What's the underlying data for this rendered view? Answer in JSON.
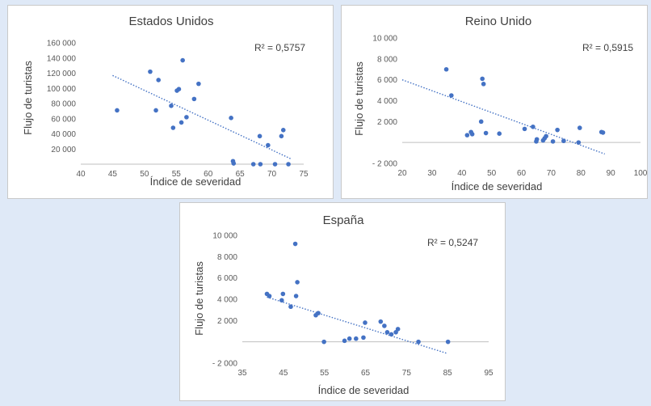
{
  "chart_data": [
    {
      "type": "scatter",
      "title": "Estados Unidos",
      "xlabel": "Índice de severidad",
      "ylabel": "Flujo de turistas",
      "xlim": [
        40,
        75
      ],
      "ylim": [
        0,
        160000
      ],
      "xticks": [
        40,
        45,
        50,
        55,
        60,
        65,
        70,
        75
      ],
      "xtick_labels": [
        "40",
        "45",
        "50",
        "55",
        "60",
        "65",
        "70",
        "75"
      ],
      "yticks": [
        20000,
        40000,
        60000,
        80000,
        100000,
        120000,
        140000,
        160000
      ],
      "ytick_labels": [
        "20 000",
        "40 000",
        "60 000",
        "80 000",
        "100 000",
        "120 000",
        "140 000",
        "160 000"
      ],
      "grid": false,
      "r2_label": "R² = 0,5757",
      "trendline": {
        "x": [
          45,
          73
        ],
        "y": [
          117000,
          7000
        ]
      },
      "points": [
        [
          45.7,
          71000
        ],
        [
          50.9,
          122000
        ],
        [
          51.8,
          71000
        ],
        [
          52.2,
          111000
        ],
        [
          54.2,
          77000
        ],
        [
          54.5,
          48000
        ],
        [
          55.1,
          97000
        ],
        [
          55.4,
          99000
        ],
        [
          55.8,
          55000
        ],
        [
          56,
          137000
        ],
        [
          56.6,
          62000
        ],
        [
          57.8,
          86000
        ],
        [
          58.5,
          106000
        ],
        [
          63.6,
          61000
        ],
        [
          63.9,
          4000
        ],
        [
          64,
          1000
        ],
        [
          67.1,
          0
        ],
        [
          68.1,
          37000
        ],
        [
          68.2,
          0
        ],
        [
          69.4,
          25000
        ],
        [
          70.5,
          0
        ],
        [
          71.5,
          37000
        ],
        [
          71.8,
          45000
        ],
        [
          72.6,
          0
        ]
      ]
    },
    {
      "type": "scatter",
      "title": "Reino Unido",
      "xlabel": "Índice de severidad",
      "ylabel": "Flujo de turistas",
      "xlim": [
        20,
        100
      ],
      "ylim": [
        -2000,
        10000
      ],
      "xticks": [
        20,
        30,
        40,
        50,
        60,
        70,
        80,
        90,
        100
      ],
      "xtick_labels": [
        "20",
        "30",
        "40",
        "50",
        "60",
        "70",
        "80",
        "90",
        "100"
      ],
      "yticks": [
        -2000,
        2000,
        4000,
        6000,
        8000,
        10000
      ],
      "ytick_labels": [
        "- 2 000",
        "2 000",
        "4 000",
        "6 000",
        "8 000",
        "10 000"
      ],
      "grid": false,
      "r2_label": "R² = 0,5915",
      "trendline": {
        "x": [
          20,
          88
        ],
        "y": [
          6000,
          -1100
        ]
      },
      "points": [
        [
          34.8,
          7000
        ],
        [
          36.5,
          4500
        ],
        [
          41.8,
          700
        ],
        [
          43.1,
          1000
        ],
        [
          43.5,
          800
        ],
        [
          46.5,
          2000
        ],
        [
          46.9,
          6100
        ],
        [
          47.3,
          5600
        ],
        [
          48.1,
          900
        ],
        [
          52.6,
          850
        ],
        [
          61.1,
          1300
        ],
        [
          63.9,
          1500
        ],
        [
          65,
          100
        ],
        [
          65.2,
          300
        ],
        [
          67.3,
          200
        ],
        [
          67.8,
          400
        ],
        [
          68.3,
          600
        ],
        [
          70.6,
          100
        ],
        [
          72.1,
          1200
        ],
        [
          74.2,
          150
        ],
        [
          79.2,
          0
        ],
        [
          79.6,
          1400
        ],
        [
          86.9,
          1000
        ],
        [
          87.4,
          950
        ]
      ]
    },
    {
      "type": "scatter",
      "title": "España",
      "xlabel": "Índice de severidad",
      "ylabel": "Flujo de turistas",
      "xlim": [
        35,
        95
      ],
      "ylim": [
        -2000,
        10000
      ],
      "xticks": [
        35,
        45,
        55,
        65,
        75,
        85,
        95
      ],
      "xtick_labels": [
        "35",
        "45",
        "55",
        "65",
        "75",
        "85",
        "95"
      ],
      "yticks": [
        -2000,
        2000,
        4000,
        6000,
        8000,
        10000
      ],
      "ytick_labels": [
        "- 2 000",
        "2 000",
        "4 000",
        "6 000",
        "8 000",
        "10 000"
      ],
      "grid": false,
      "r2_label": "R² = 0,5247",
      "trendline": {
        "x": [
          41,
          85
        ],
        "y": [
          4200,
          -1100
        ]
      },
      "points": [
        [
          41,
          4500
        ],
        [
          41.6,
          4300
        ],
        [
          44.6,
          3900
        ],
        [
          44.9,
          4500
        ],
        [
          46.8,
          3300
        ],
        [
          47.9,
          9200
        ],
        [
          48.1,
          4300
        ],
        [
          48.4,
          5600
        ],
        [
          52.9,
          2500
        ],
        [
          53.5,
          2700
        ],
        [
          54.9,
          0
        ],
        [
          59.9,
          100
        ],
        [
          61.1,
          300
        ],
        [
          62.7,
          300
        ],
        [
          64.5,
          400
        ],
        [
          64.9,
          1800
        ],
        [
          68.7,
          1900
        ],
        [
          69.6,
          1500
        ],
        [
          70.3,
          900
        ],
        [
          71.3,
          700
        ],
        [
          72.4,
          900
        ],
        [
          72.9,
          1200
        ],
        [
          77.9,
          0
        ],
        [
          85.1,
          0
        ]
      ]
    }
  ]
}
